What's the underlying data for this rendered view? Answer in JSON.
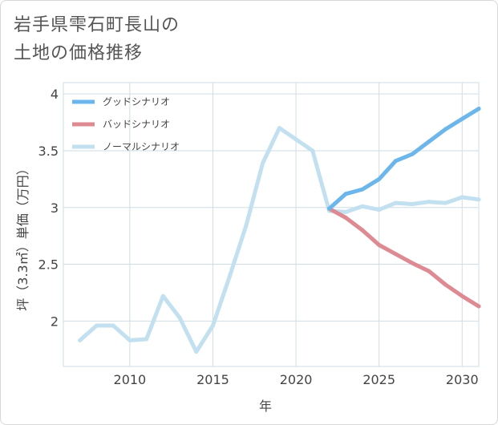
{
  "title": {
    "line1": "岩手県雫石町長山の",
    "line2": "土地の価格推移"
  },
  "chart_data": {
    "type": "line",
    "xlabel": "年",
    "ylabel": "坪（3.3㎡）単価（万円）",
    "xlim": [
      2006,
      2031
    ],
    "ylim": [
      1.6,
      4.1
    ],
    "x_ticks": [
      2010,
      2015,
      2020,
      2025,
      2030
    ],
    "y_ticks": [
      2,
      2.5,
      3,
      3.5,
      4
    ],
    "grid": true,
    "legend_position": "top-left",
    "series": [
      {
        "name": "グッドシナリオ",
        "color": "#6cb6ec",
        "x": [
          2022,
          2023,
          2024,
          2025,
          2026,
          2027,
          2028,
          2029,
          2030,
          2031
        ],
        "y": [
          2.99,
          3.12,
          3.16,
          3.25,
          3.41,
          3.47,
          3.58,
          3.69,
          3.78,
          3.87
        ]
      },
      {
        "name": "バッドシナリオ",
        "color": "#de8a92",
        "x": [
          2022,
          2023,
          2024,
          2025,
          2026,
          2027,
          2028,
          2029,
          2030,
          2031
        ],
        "y": [
          2.99,
          2.91,
          2.8,
          2.67,
          2.59,
          2.51,
          2.44,
          2.32,
          2.22,
          2.13
        ]
      },
      {
        "name": "ノーマルシナリオ",
        "color": "#c2e0ef",
        "x": [
          2007,
          2008,
          2009,
          2010,
          2011,
          2012,
          2013,
          2014,
          2015,
          2016,
          2017,
          2018,
          2019,
          2020,
          2021,
          2022,
          2023,
          2024,
          2025,
          2026,
          2027,
          2028,
          2029,
          2030,
          2031
        ],
        "y": [
          1.83,
          1.96,
          1.96,
          1.83,
          1.84,
          2.22,
          2.03,
          1.73,
          1.96,
          2.39,
          2.84,
          3.39,
          3.7,
          3.6,
          3.5,
          2.97,
          2.96,
          3.01,
          2.98,
          3.04,
          3.03,
          3.05,
          3.04,
          3.09,
          3.07
        ]
      }
    ]
  }
}
